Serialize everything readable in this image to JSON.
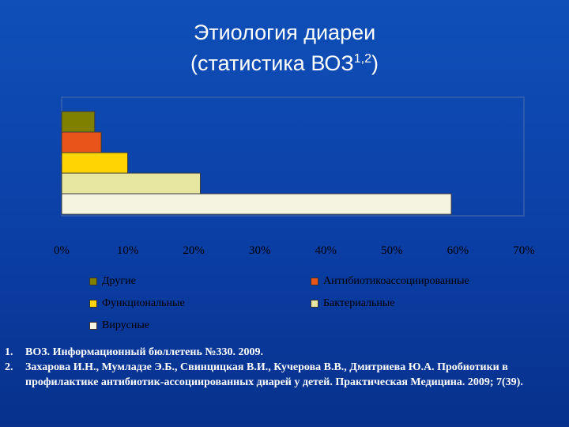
{
  "title": {
    "line1": "Этиология диареи",
    "line2_main": "(статистика ВОЗ",
    "line2_sup": "1,2",
    "line2_end": ")"
  },
  "chart_data": {
    "type": "bar",
    "orientation": "horizontal",
    "categories": [
      "Другие",
      "Антибиотикоассоциированные",
      "Функциональные",
      "Бактериальные",
      "Вирусные"
    ],
    "values": [
      5,
      6,
      10,
      21,
      59
    ],
    "colors": [
      "#808000",
      "#e8541a",
      "#ffd400",
      "#e6e6a0",
      "#f4f4e0"
    ],
    "xlim": [
      0,
      70
    ],
    "xticks": [
      "0%",
      "10%",
      "20%",
      "30%",
      "40%",
      "50%",
      "60%",
      "70%"
    ],
    "grid": false,
    "legend_position": "bottom"
  },
  "legend": [
    {
      "label": "Другие",
      "color": "#808000"
    },
    {
      "label": "Антибиотикоассоциированные",
      "color": "#e8541a"
    },
    {
      "label": "Функциональные",
      "color": "#ffd400"
    },
    {
      "label": "Бактериальные",
      "color": "#e6e6a0"
    },
    {
      "label": "Вирусные",
      "color": "#f4f4e0"
    }
  ],
  "references": [
    {
      "num": "1.",
      "text": "ВОЗ. Информационный бюллетень №330. 2009."
    },
    {
      "num": "2.",
      "text": "Захарова И.Н., Мумладзе Э.Б., Свинцицкая В.И., Кучерова В.В., Дмитриева Ю.А. Пробиотики в профилактике антибиотик-ассоциированных диарей у детей. Практическая Медицина. 2009; 7(39)."
    }
  ]
}
